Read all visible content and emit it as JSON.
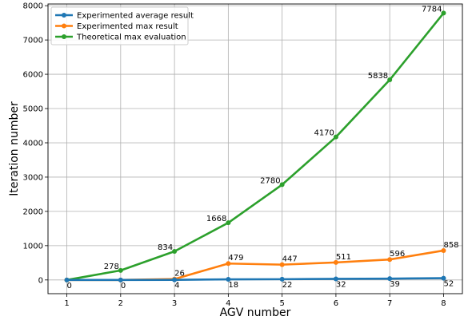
{
  "chart_data": {
    "type": "line",
    "title": "",
    "xlabel": "AGV number",
    "ylabel": "Iteration number",
    "x": [
      1,
      2,
      3,
      4,
      5,
      6,
      7,
      8
    ],
    "xlim": [
      0.65,
      8.35
    ],
    "ylim": [
      -400,
      8050
    ],
    "yticks": [
      0,
      1000,
      2000,
      3000,
      4000,
      5000,
      6000,
      7000,
      8000
    ],
    "grid": true,
    "legend_position": "top-left",
    "series": [
      {
        "name": "Experimented average result",
        "color": "#1f77b4",
        "values": [
          0,
          0,
          4,
          18,
          22,
          32,
          39,
          52
        ],
        "labels": [
          "0",
          "0",
          "4",
          "18",
          "22",
          "32",
          "39",
          "52"
        ]
      },
      {
        "name": "Experimented max result",
        "color": "#ff7f0e",
        "values": [
          0,
          0,
          26,
          479,
          447,
          511,
          596,
          858
        ],
        "labels": [
          "",
          "",
          "26",
          "479",
          "447",
          "511",
          "596",
          "858"
        ]
      },
      {
        "name": "Theoretical max evaluation",
        "color": "#2ca02c",
        "values": [
          0,
          278,
          834,
          1668,
          2780,
          4170,
          5838,
          7784
        ],
        "labels": [
          "",
          "278",
          "834",
          "1668",
          "2780",
          "4170",
          "5838",
          "7784"
        ]
      }
    ]
  }
}
